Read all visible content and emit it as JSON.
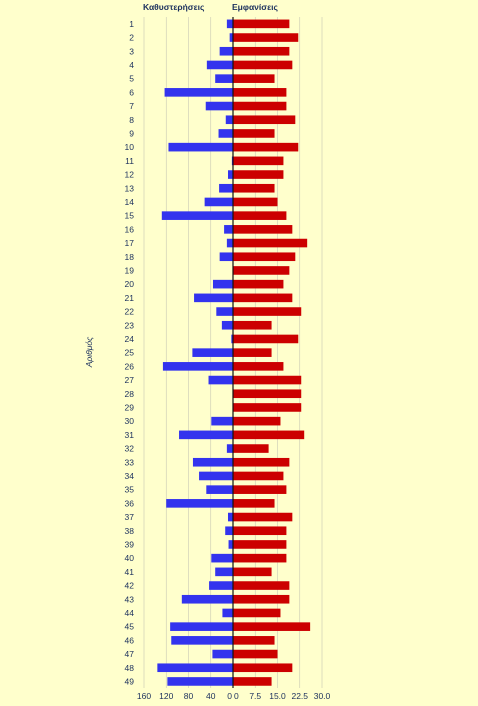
{
  "chart_data": {
    "type": "bar",
    "orientation": "horizontal",
    "ylabel": "Αριθμός",
    "left_panel": {
      "title": "Καθυστερήσεις",
      "color": "#3333ee",
      "xlim": [
        160,
        0
      ],
      "ticks": [
        "160",
        "120",
        "80",
        "40",
        "0"
      ]
    },
    "right_panel": {
      "title": "Εμφανίσεις",
      "color": "#cc0000",
      "xlim": [
        0,
        30
      ],
      "ticks": [
        "0",
        "7.5",
        "15.0",
        "22.5",
        "30.0"
      ]
    },
    "categories": [
      "1",
      "2",
      "3",
      "4",
      "5",
      "6",
      "7",
      "8",
      "9",
      "10",
      "11",
      "12",
      "13",
      "14",
      "15",
      "16",
      "17",
      "18",
      "19",
      "20",
      "21",
      "22",
      "23",
      "24",
      "25",
      "26",
      "27",
      "28",
      "29",
      "30",
      "31",
      "32",
      "33",
      "34",
      "35",
      "36",
      "37",
      "38",
      "39",
      "40",
      "41",
      "42",
      "43",
      "44",
      "45",
      "46",
      "47",
      "48",
      "49"
    ],
    "series": [
      {
        "name": "Καθυστερήσεις",
        "values": [
          11,
          6,
          24,
          47,
          32,
          123,
          49,
          13,
          26,
          116,
          2,
          9,
          25,
          51,
          128,
          16,
          11,
          24,
          0,
          36,
          70,
          30,
          20,
          3,
          73,
          126,
          44,
          0,
          0,
          39,
          97,
          11,
          72,
          61,
          48,
          120,
          9,
          14,
          8,
          39,
          32,
          43,
          92,
          19,
          113,
          111,
          37,
          136,
          118
        ]
      },
      {
        "name": "Εμφανίσεις",
        "values": [
          19,
          22,
          19,
          20,
          14,
          18,
          18,
          21,
          14,
          22,
          17,
          17,
          14,
          15,
          18,
          20,
          25,
          21,
          19,
          17,
          20,
          23,
          13,
          22,
          13,
          17,
          23,
          23,
          23,
          16,
          24,
          12,
          19,
          17,
          18,
          14,
          20,
          18,
          18,
          18,
          13,
          19,
          19,
          16,
          26,
          14,
          15,
          20,
          13
        ]
      }
    ]
  }
}
